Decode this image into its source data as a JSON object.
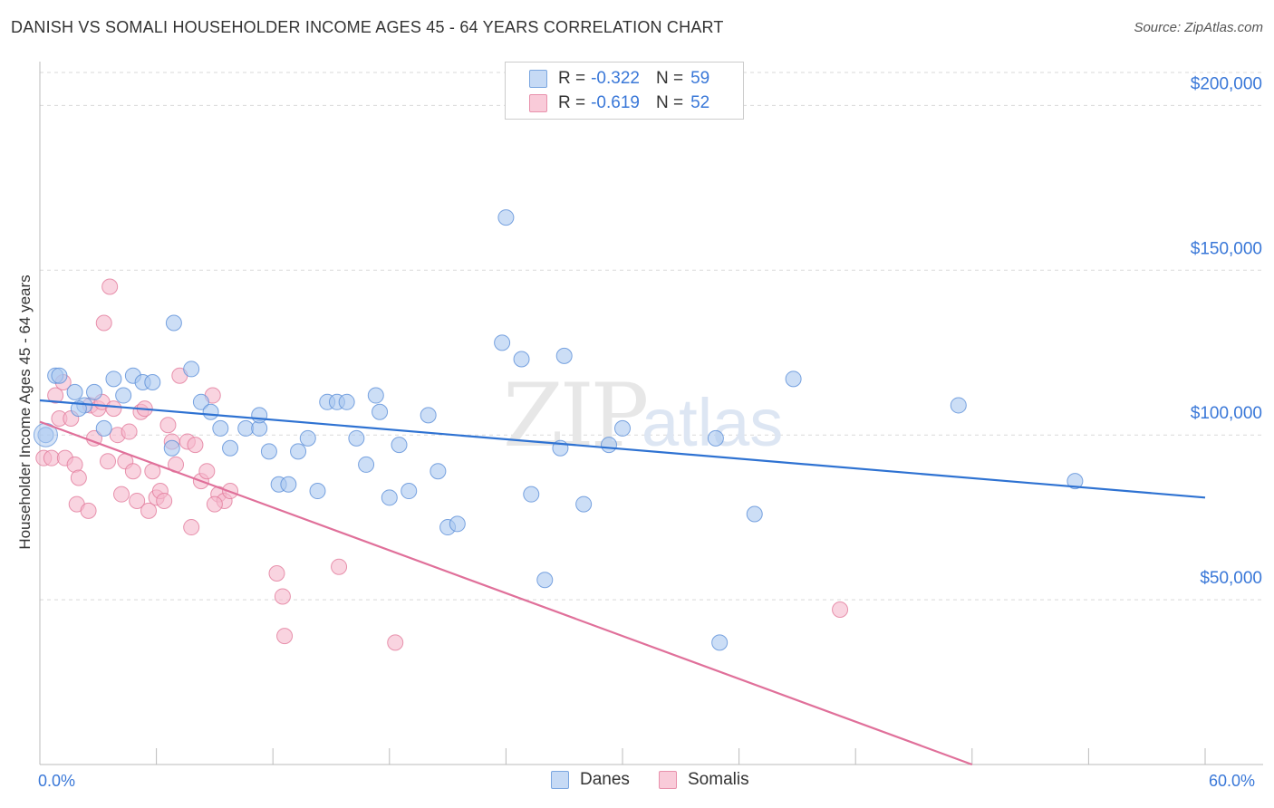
{
  "title": "DANISH VS SOMALI HOUSEHOLDER INCOME AGES 45 - 64 YEARS CORRELATION CHART",
  "source": "Source: ZipAtlas.com",
  "watermark": {
    "zip": "ZIP",
    "atlas": "atlas"
  },
  "legend": {
    "danes": {
      "r_label": "R =",
      "r_value": "-0.322",
      "n_label": "N =",
      "n_value": "59"
    },
    "somalis": {
      "r_label": "R =",
      "r_value": "-0.619",
      "n_label": "N =",
      "n_value": "52"
    }
  },
  "colors": {
    "danes_fill": "#aac8f0",
    "danes_stroke": "#5b8fd8",
    "danes_line": "#2e72d2",
    "somalis_fill": "#f5b8cb",
    "somalis_stroke": "#e27a9b",
    "somalis_line": "#e0709a",
    "accent_text": "#3a78d8",
    "grid": "#d9d9d9"
  },
  "chart_data": {
    "type": "scatter",
    "title": "DANISH VS SOMALI HOUSEHOLDER INCOME AGES 45 - 64 YEARS CORRELATION CHART",
    "xlabel": "",
    "ylabel": "Householder Income Ages 45 - 64 years",
    "xlim": [
      0,
      60
    ],
    "ylim": [
      0,
      210000
    ],
    "x_tick_labels": [
      "0.0%",
      "60.0%"
    ],
    "y_ticks": [
      50000,
      100000,
      150000,
      200000
    ],
    "y_tick_labels": [
      "$50,000",
      "$100,000",
      "$150,000",
      "$200,000"
    ],
    "grid": true,
    "legend_position": "bottom-center",
    "series": [
      {
        "name": "Danes",
        "r": -0.322,
        "n": 59,
        "trend": {
          "x": [
            0.0,
            60.0
          ],
          "y": [
            110500,
            81000
          ]
        },
        "points": [
          [
            0.3,
            100000
          ],
          [
            0.8,
            118000
          ],
          [
            1.0,
            118000
          ],
          [
            1.8,
            113000
          ],
          [
            2.3,
            109000
          ],
          [
            2.8,
            113000
          ],
          [
            3.3,
            102000
          ],
          [
            3.8,
            117000
          ],
          [
            4.3,
            112000
          ],
          [
            4.8,
            118000
          ],
          [
            5.3,
            116000
          ],
          [
            5.8,
            116000
          ],
          [
            6.8,
            96000
          ],
          [
            6.9,
            134000
          ],
          [
            7.8,
            120000
          ],
          [
            8.3,
            110000
          ],
          [
            8.8,
            107000
          ],
          [
            9.3,
            102000
          ],
          [
            9.8,
            96000
          ],
          [
            10.6,
            102000
          ],
          [
            11.3,
            102000
          ],
          [
            11.3,
            106000
          ],
          [
            11.8,
            95000
          ],
          [
            12.3,
            85000
          ],
          [
            12.8,
            85000
          ],
          [
            13.3,
            95000
          ],
          [
            13.8,
            99000
          ],
          [
            14.3,
            83000
          ],
          [
            14.8,
            110000
          ],
          [
            15.3,
            110000
          ],
          [
            15.8,
            110000
          ],
          [
            16.3,
            99000
          ],
          [
            16.8,
            91000
          ],
          [
            17.3,
            112000
          ],
          [
            17.5,
            107000
          ],
          [
            18.0,
            81000
          ],
          [
            18.5,
            97000
          ],
          [
            19.0,
            83000
          ],
          [
            20.0,
            106000
          ],
          [
            20.5,
            89000
          ],
          [
            21.0,
            72000
          ],
          [
            21.5,
            73000
          ],
          [
            23.8,
            128000
          ],
          [
            24.0,
            166000
          ],
          [
            24.8,
            123000
          ],
          [
            25.3,
            82000
          ],
          [
            26.0,
            56000
          ],
          [
            26.8,
            96000
          ],
          [
            27.0,
            124000
          ],
          [
            28.0,
            79000
          ],
          [
            29.3,
            97000
          ],
          [
            30.0,
            102000
          ],
          [
            34.8,
            99000
          ],
          [
            35.0,
            37000
          ],
          [
            36.8,
            76000
          ],
          [
            38.8,
            117000
          ],
          [
            47.3,
            109000
          ],
          [
            53.3,
            86000
          ],
          [
            2.0,
            108000
          ]
        ]
      },
      {
        "name": "Somalis",
        "r": -0.619,
        "n": 52,
        "trend": {
          "x": [
            0.0,
            48.0
          ],
          "y": [
            104000,
            0
          ]
        },
        "points": [
          [
            0.2,
            93000
          ],
          [
            0.6,
            93000
          ],
          [
            0.8,
            112000
          ],
          [
            1.0,
            105000
          ],
          [
            1.2,
            116000
          ],
          [
            1.3,
            93000
          ],
          [
            1.6,
            105000
          ],
          [
            1.8,
            91000
          ],
          [
            1.9,
            79000
          ],
          [
            2.0,
            87000
          ],
          [
            2.5,
            77000
          ],
          [
            2.6,
            109000
          ],
          [
            2.8,
            99000
          ],
          [
            3.0,
            108000
          ],
          [
            3.2,
            110000
          ],
          [
            3.3,
            134000
          ],
          [
            3.5,
            92000
          ],
          [
            3.6,
            145000
          ],
          [
            3.8,
            108000
          ],
          [
            4.0,
            100000
          ],
          [
            4.2,
            82000
          ],
          [
            4.4,
            92000
          ],
          [
            4.6,
            101000
          ],
          [
            4.8,
            89000
          ],
          [
            5.0,
            80000
          ],
          [
            5.2,
            107000
          ],
          [
            5.4,
            108000
          ],
          [
            5.6,
            77000
          ],
          [
            5.8,
            89000
          ],
          [
            6.0,
            81000
          ],
          [
            6.2,
            83000
          ],
          [
            6.6,
            103000
          ],
          [
            6.8,
            98000
          ],
          [
            7.0,
            91000
          ],
          [
            7.2,
            118000
          ],
          [
            7.6,
            98000
          ],
          [
            7.8,
            72000
          ],
          [
            8.0,
            97000
          ],
          [
            8.3,
            86000
          ],
          [
            8.6,
            89000
          ],
          [
            8.9,
            112000
          ],
          [
            9.2,
            82000
          ],
          [
            9.5,
            80000
          ],
          [
            9.8,
            83000
          ],
          [
            12.2,
            58000
          ],
          [
            12.5,
            51000
          ],
          [
            12.6,
            39000
          ],
          [
            15.4,
            60000
          ],
          [
            18.3,
            37000
          ],
          [
            41.2,
            47000
          ],
          [
            6.4,
            80000
          ],
          [
            9.0,
            79000
          ]
        ]
      }
    ]
  },
  "bottom_legend": {
    "danes": "Danes",
    "somalis": "Somalis"
  }
}
